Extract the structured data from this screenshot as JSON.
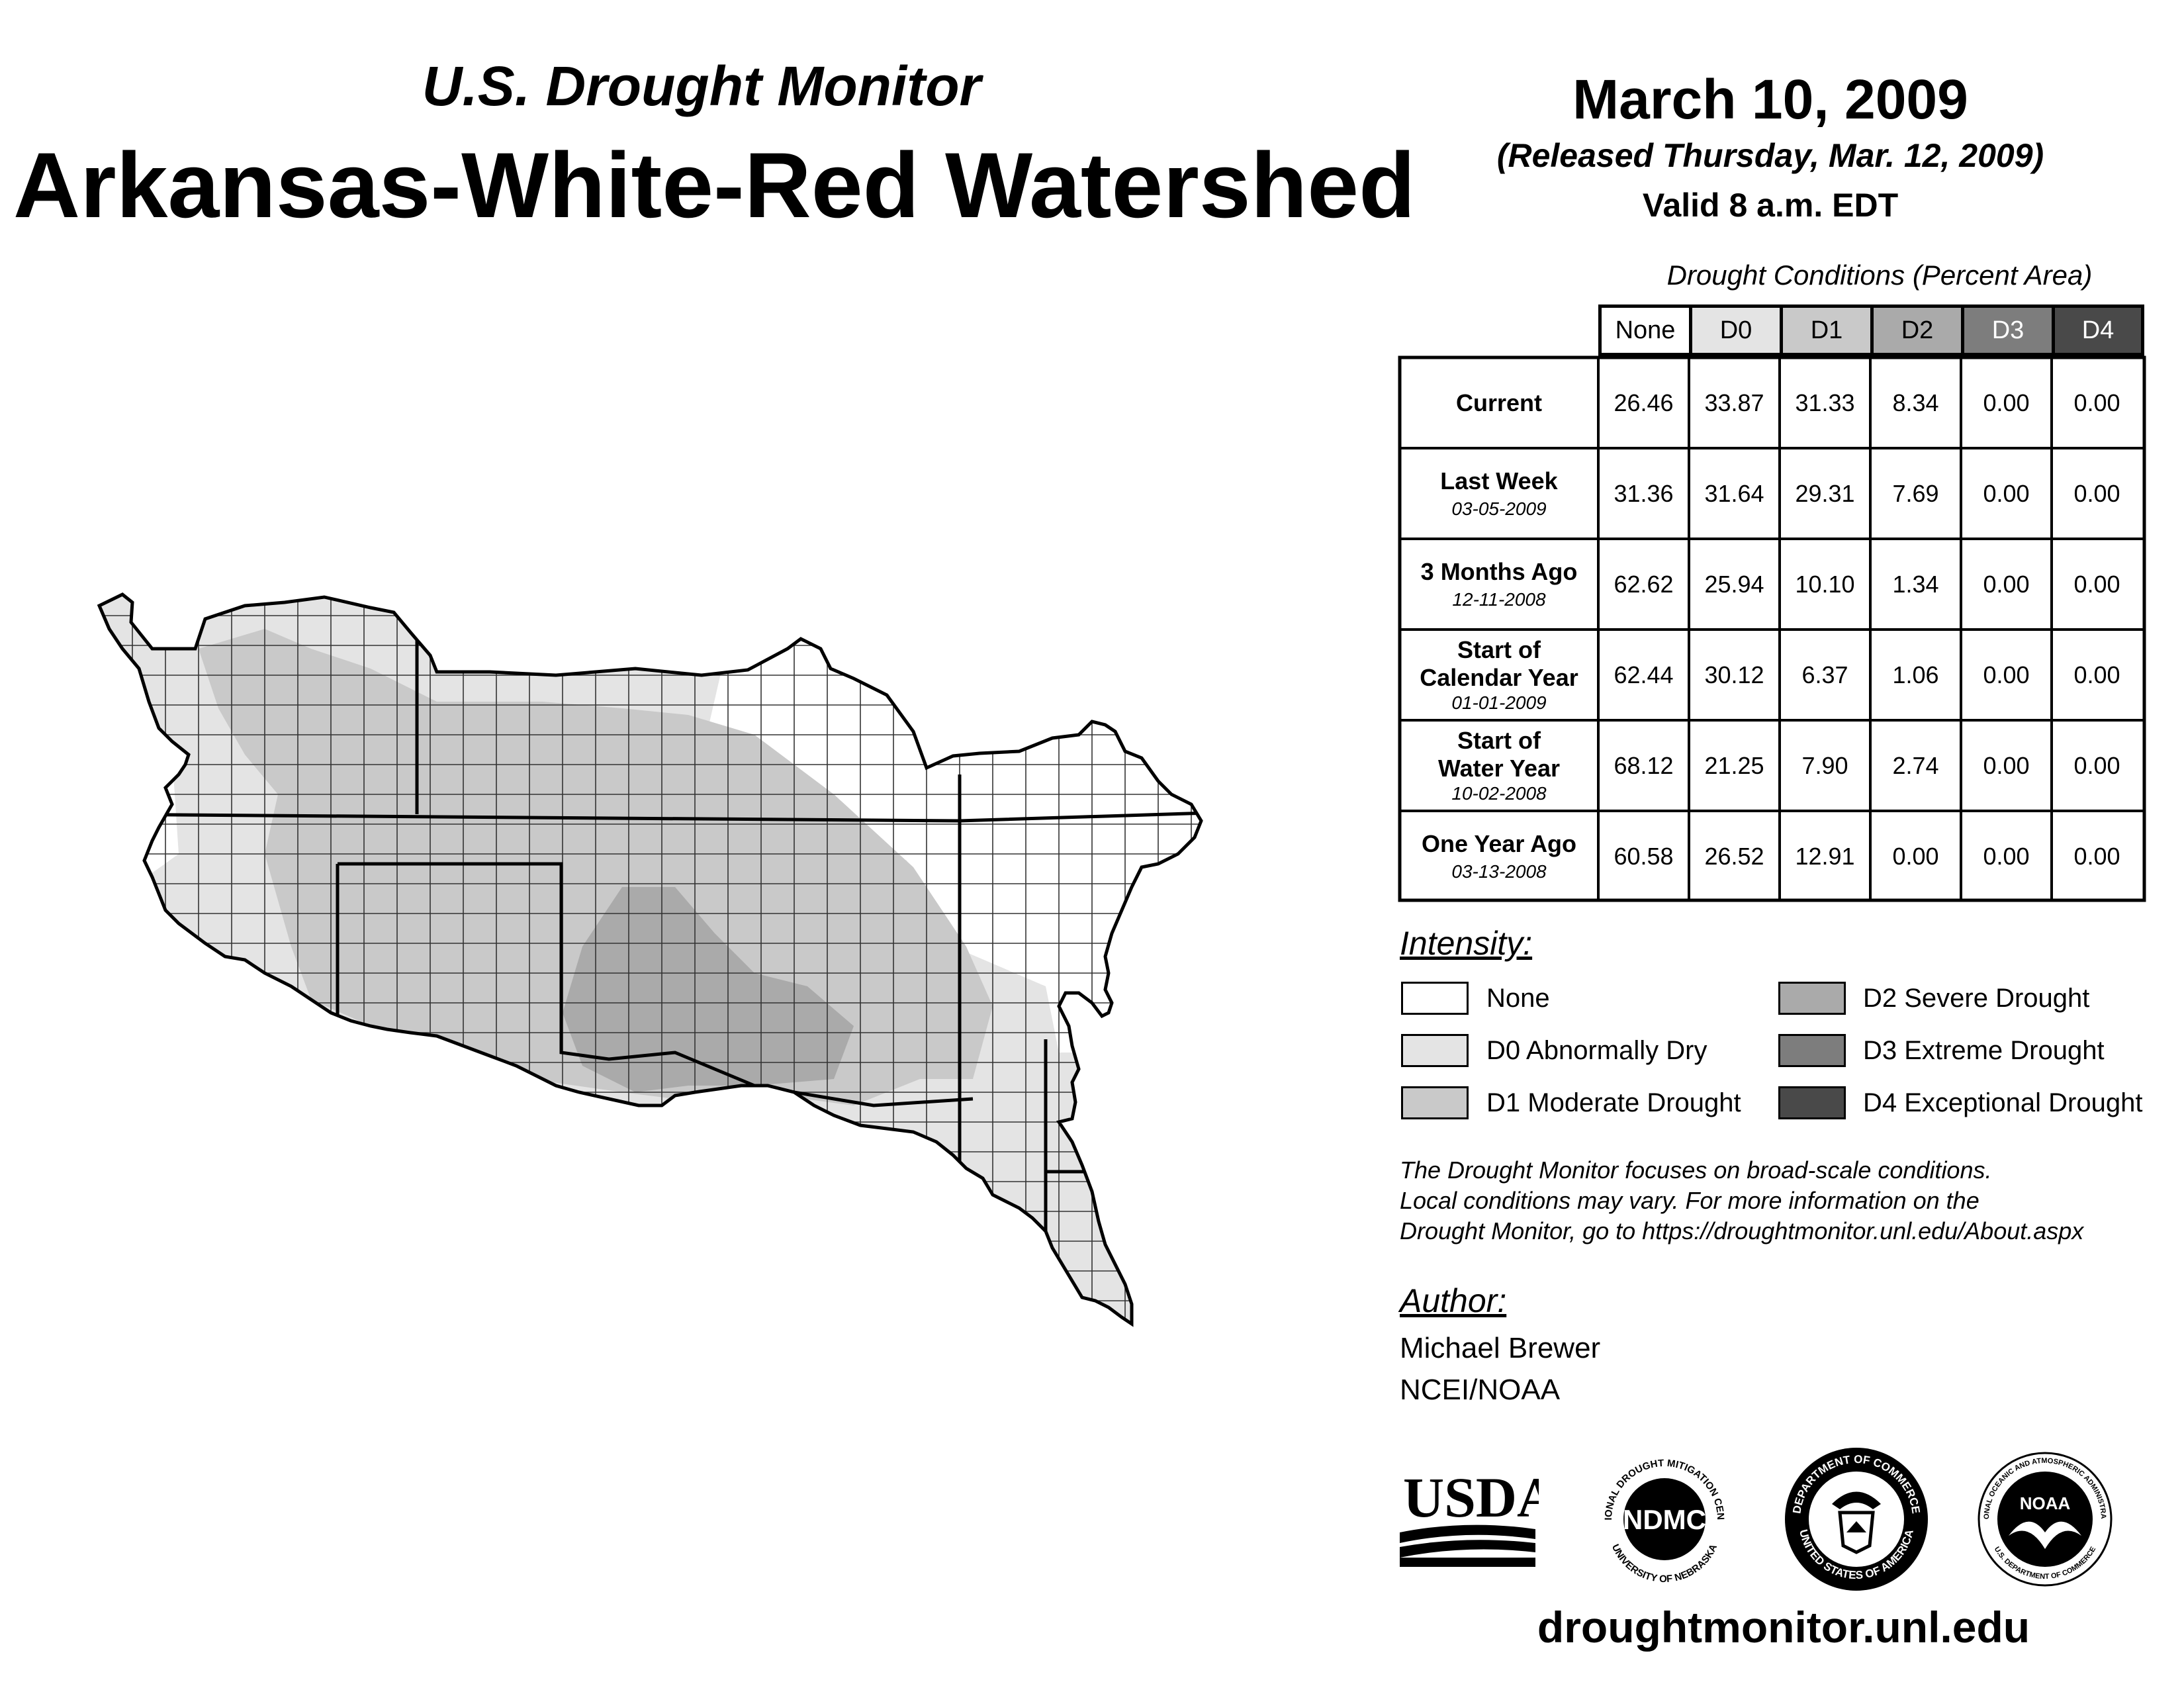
{
  "header": {
    "subtitle": "U.S. Drought Monitor",
    "title": "Arkansas-White-Red Watershed",
    "date": "March 10, 2009",
    "released": "(Released Thursday, Mar. 12, 2009)",
    "valid": "Valid 8 a.m. EDT"
  },
  "table": {
    "caption": "Drought Conditions (Percent Area)",
    "columns": [
      "None",
      "D0",
      "D1",
      "D2",
      "D3",
      "D4"
    ],
    "rows": [
      {
        "label": "Current",
        "date": "",
        "values": [
          "26.46",
          "33.87",
          "31.33",
          "8.34",
          "0.00",
          "0.00"
        ]
      },
      {
        "label": "Last Week",
        "date": "03-05-2009",
        "values": [
          "31.36",
          "31.64",
          "29.31",
          "7.69",
          "0.00",
          "0.00"
        ]
      },
      {
        "label": "3 Months Ago",
        "date": "12-11-2008",
        "values": [
          "62.62",
          "25.94",
          "10.10",
          "1.34",
          "0.00",
          "0.00"
        ]
      },
      {
        "label": "Start of Calendar Year",
        "date": "01-01-2009",
        "values": [
          "62.44",
          "30.12",
          "6.37",
          "1.06",
          "0.00",
          "0.00"
        ]
      },
      {
        "label": "Start of Water Year",
        "date": "10-02-2008",
        "values": [
          "68.12",
          "21.25",
          "7.90",
          "2.74",
          "0.00",
          "0.00"
        ]
      },
      {
        "label": "One Year Ago",
        "date": "03-13-2008",
        "values": [
          "60.58",
          "26.52",
          "12.91",
          "0.00",
          "0.00",
          "0.00"
        ]
      }
    ]
  },
  "legend": {
    "title": "Intensity:",
    "items": [
      {
        "label": "None",
        "color": "#ffffff"
      },
      {
        "label": "D0 Abnormally Dry",
        "color": "#e4e4e4"
      },
      {
        "label": "D1 Moderate Drought",
        "color": "#c9c9c9"
      },
      {
        "label": "D2 Severe Drought",
        "color": "#aaaaaa"
      },
      {
        "label": "D3 Extreme Drought",
        "color": "#7d7d7d"
      },
      {
        "label": "D4 Exceptional Drought",
        "color": "#494949"
      }
    ]
  },
  "note": {
    "line1": "The Drought Monitor focuses on broad-scale conditions.",
    "line2": "Local conditions may vary. For more information on the",
    "line3": "Drought Monitor, go to https://droughtmonitor.unl.edu/About.aspx"
  },
  "author": {
    "title": "Author:",
    "name": "Michael Brewer",
    "org": "NCEI/NOAA"
  },
  "logos": {
    "usda": "USDA",
    "ndmc": "NDMC",
    "ndmc_ring_top": "NATIONAL DROUGHT MITIGATION CENTER",
    "ndmc_ring_bottom": "UNIVERSITY OF NEBRASKA",
    "doc_ring_top": "DEPARTMENT OF COMMERCE",
    "doc_ring_bottom": "UNITED STATES OF AMERICA",
    "noaa": "NOAA",
    "noaa_ring_top": "NATIONAL OCEANIC AND ATMOSPHERIC ADMINISTRATION",
    "noaa_ring_bottom": "U.S. DEPARTMENT OF COMMERCE"
  },
  "footer": {
    "site": "droughtmonitor.unl.edu"
  }
}
